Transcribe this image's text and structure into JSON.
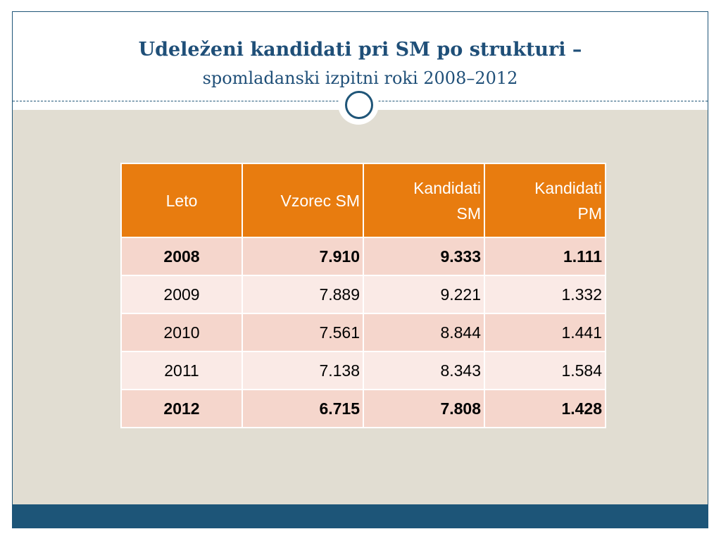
{
  "title": {
    "main": "Udeleženi kandidati pri SM po strukturi –",
    "sub": "spomladanski izpitni roki 2008–2012"
  },
  "table": {
    "headers": {
      "leto": "Leto",
      "vzorec": "Vzorec SM",
      "kandidati_sm_line1": "Kandidati",
      "kandidati_sm_line2": "SM",
      "kandidati_pm_line1": "Kandidati",
      "kandidati_pm_line2": "PM"
    },
    "rows": [
      {
        "leto": "2008",
        "vzorec": "7.910",
        "kandidati_sm": "9.333",
        "kandidati_pm": "1.111",
        "bold": true
      },
      {
        "leto": "2009",
        "vzorec": "7.889",
        "kandidati_sm": "9.221",
        "kandidati_pm": "1.332",
        "bold": false
      },
      {
        "leto": "2010",
        "vzorec": "7.561",
        "kandidati_sm": "8.844",
        "kandidati_pm": "1.441",
        "bold": false
      },
      {
        "leto": "2011",
        "vzorec": "7.138",
        "kandidati_sm": "8.343",
        "kandidati_pm": "1.584",
        "bold": false
      },
      {
        "leto": "2012",
        "vzorec": "6.715",
        "kandidati_sm": "7.808",
        "kandidati_pm": "1.428",
        "bold": true
      }
    ]
  },
  "colors": {
    "header_orange": "#e87c0f",
    "row_dark": "#f5d6cc",
    "row_light": "#faeae6",
    "title_blue": "#1f4f78",
    "bottom_band": "#1d5578",
    "content_background": "#e1ddd2"
  }
}
